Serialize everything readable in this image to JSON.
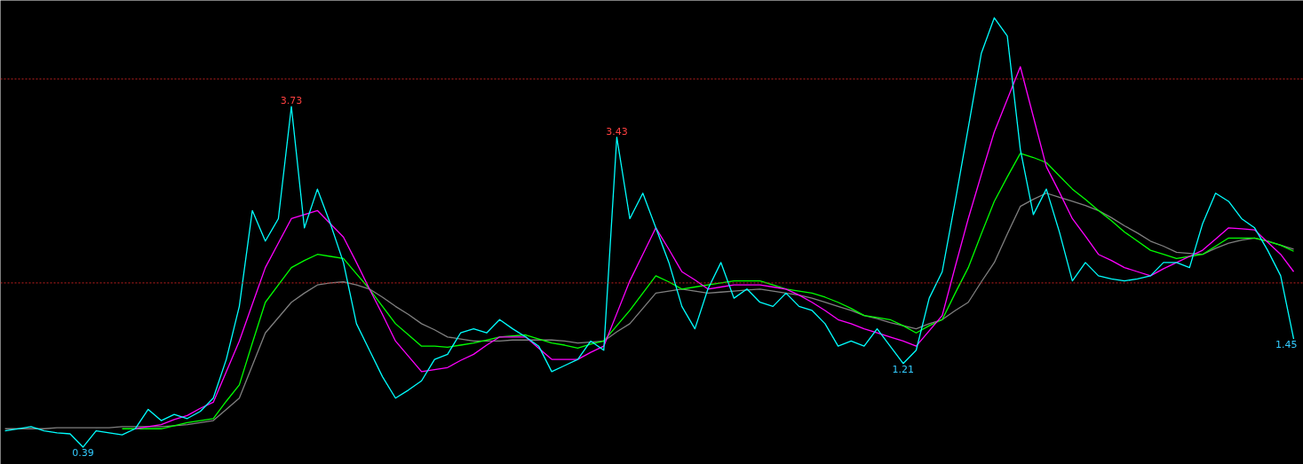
{
  "chart_data": {
    "type": "line",
    "categories": [
      null,
      null,
      null,
      null,
      null,
      null,
      null,
      null,
      null,
      null,
      null,
      null,
      null,
      null,
      null,
      null,
      null,
      null,
      null,
      null,
      null,
      null,
      null,
      null,
      null,
      null,
      null,
      null,
      null,
      null,
      null,
      null,
      null,
      null,
      null,
      null,
      null,
      null,
      null,
      null,
      null,
      null,
      null,
      null,
      null,
      null,
      null,
      null,
      null,
      null,
      null,
      null,
      null,
      null,
      null,
      null,
      null,
      null,
      null,
      null,
      null,
      null,
      null,
      null,
      null,
      null,
      null,
      null,
      null,
      null,
      null,
      null,
      null,
      null,
      null,
      null,
      null,
      null,
      null,
      null,
      null,
      null,
      null,
      null,
      null,
      null,
      null,
      null,
      null,
      null,
      null,
      null,
      null,
      null,
      null,
      null,
      null,
      null,
      null,
      null
    ],
    "series": [
      {
        "color": "#808080",
        "values": [
          0.57,
          0.57,
          0.57,
          0.57,
          0.58,
          0.58,
          0.58,
          0.58,
          0.58,
          0.59,
          0.59,
          0.59,
          0.59,
          0.6,
          0.61,
          0.63,
          0.65,
          0.76,
          0.87,
          1.19,
          1.51,
          1.66,
          1.81,
          1.9,
          1.98,
          2.0,
          2.01,
          1.98,
          1.94,
          1.86,
          1.77,
          1.69,
          1.6,
          1.54,
          1.47,
          1.45,
          1.43,
          1.43,
          1.43,
          1.44,
          1.44,
          1.44,
          1.44,
          1.43,
          1.41,
          1.42,
          1.43,
          1.52,
          1.6,
          1.75,
          1.9,
          1.92,
          1.94,
          1.92,
          1.9,
          1.91,
          1.92,
          1.93,
          1.94,
          1.92,
          1.9,
          1.88,
          1.85,
          1.81,
          1.77,
          1.73,
          1.68,
          1.65,
          1.61,
          1.58,
          1.55,
          1.6,
          1.64,
          1.73,
          1.81,
          2.01,
          2.2,
          2.48,
          2.75,
          2.82,
          2.88,
          2.84,
          2.8,
          2.76,
          2.71,
          2.64,
          2.56,
          2.49,
          2.41,
          2.36,
          2.3,
          2.29,
          2.28,
          2.34,
          2.39,
          2.42,
          2.44,
          2.41,
          2.37,
          2.33
        ]
      },
      {
        "color": "#00ff00",
        "values": [
          null,
          null,
          null,
          null,
          null,
          null,
          null,
          null,
          null,
          0.57,
          0.57,
          0.57,
          0.57,
          0.6,
          0.63,
          0.65,
          0.67,
          0.84,
          1.0,
          1.41,
          1.81,
          1.98,
          2.15,
          2.22,
          2.28,
          2.26,
          2.24,
          2.09,
          1.94,
          1.77,
          1.6,
          1.49,
          1.38,
          1.38,
          1.37,
          1.39,
          1.41,
          1.44,
          1.47,
          1.48,
          1.49,
          1.45,
          1.41,
          1.39,
          1.36,
          1.4,
          1.43,
          1.58,
          1.73,
          1.9,
          2.07,
          2.01,
          1.94,
          1.96,
          1.98,
          2.0,
          2.02,
          2.02,
          2.02,
          1.98,
          1.94,
          1.92,
          1.9,
          1.86,
          1.81,
          1.75,
          1.68,
          1.66,
          1.64,
          1.58,
          1.51,
          1.58,
          1.64,
          1.9,
          2.15,
          2.48,
          2.8,
          3.04,
          3.27,
          3.23,
          3.18,
          3.05,
          2.92,
          2.82,
          2.71,
          2.61,
          2.5,
          2.41,
          2.32,
          2.28,
          2.24,
          2.26,
          2.28,
          2.36,
          2.44,
          2.44,
          2.44,
          2.41,
          2.37,
          2.31
        ]
      },
      {
        "color": "#ff00ff",
        "values": [
          null,
          null,
          null,
          null,
          null,
          null,
          null,
          null,
          null,
          null,
          0.57,
          0.59,
          0.61,
          0.66,
          0.7,
          0.77,
          0.83,
          1.13,
          1.43,
          1.79,
          2.15,
          2.39,
          2.63,
          2.67,
          2.71,
          2.58,
          2.45,
          2.2,
          1.94,
          1.69,
          1.43,
          1.28,
          1.13,
          1.15,
          1.17,
          1.24,
          1.3,
          1.39,
          1.47,
          1.47,
          1.47,
          1.36,
          1.25,
          1.25,
          1.25,
          1.32,
          1.38,
          1.7,
          2.02,
          2.28,
          2.54,
          2.33,
          2.11,
          2.03,
          1.94,
          1.96,
          1.98,
          1.98,
          1.98,
          1.96,
          1.94,
          1.88,
          1.81,
          1.73,
          1.64,
          1.6,
          1.55,
          1.51,
          1.47,
          1.43,
          1.38,
          1.53,
          1.68,
          2.16,
          2.63,
          3.06,
          3.48,
          3.8,
          4.12,
          3.63,
          3.14,
          2.89,
          2.63,
          2.46,
          2.28,
          2.22,
          2.15,
          2.11,
          2.07,
          2.14,
          2.2,
          2.26,
          2.32,
          2.43,
          2.54,
          2.53,
          2.52,
          2.4,
          2.28,
          2.11
        ]
      },
      {
        "color": "#00ffff",
        "values": [
          0.55,
          0.57,
          0.59,
          0.55,
          0.53,
          0.52,
          0.39,
          0.55,
          0.53,
          0.51,
          0.57,
          0.76,
          0.65,
          0.71,
          0.67,
          0.74,
          0.87,
          1.25,
          1.77,
          2.71,
          2.41,
          2.63,
          3.73,
          2.54,
          2.92,
          2.58,
          2.2,
          1.6,
          1.34,
          1.08,
          0.87,
          0.95,
          1.04,
          1.25,
          1.3,
          1.51,
          1.55,
          1.51,
          1.64,
          1.55,
          1.47,
          1.38,
          1.13,
          1.19,
          1.25,
          1.43,
          1.34,
          3.43,
          2.63,
          2.88,
          2.54,
          2.2,
          1.77,
          1.55,
          1.94,
          2.2,
          1.85,
          1.94,
          1.81,
          1.77,
          1.9,
          1.77,
          1.73,
          1.6,
          1.38,
          1.43,
          1.38,
          1.55,
          1.38,
          1.21,
          1.34,
          1.85,
          2.11,
          2.8,
          3.52,
          4.25,
          4.6,
          4.42,
          3.31,
          2.67,
          2.92,
          2.5,
          2.02,
          2.2,
          2.07,
          2.04,
          2.02,
          2.04,
          2.07,
          2.2,
          2.2,
          2.15,
          2.58,
          2.88,
          2.8,
          2.63,
          2.54,
          2.32,
          2.07,
          1.45
        ],
        "value_labels": [
          null,
          null,
          null,
          null,
          null,
          null,
          "0.39",
          null,
          null,
          null,
          null,
          null,
          null,
          null,
          null,
          null,
          null,
          null,
          null,
          null,
          null,
          null,
          "3.73",
          null,
          null,
          null,
          null,
          null,
          null,
          null,
          null,
          null,
          null,
          null,
          null,
          null,
          null,
          null,
          null,
          null,
          null,
          null,
          null,
          null,
          null,
          null,
          null,
          "3.43",
          null,
          null,
          null,
          null,
          null,
          null,
          null,
          null,
          null,
          null,
          null,
          null,
          null,
          null,
          null,
          null,
          null,
          null,
          null,
          null,
          null,
          "1.21",
          null,
          null,
          null,
          null,
          null,
          null,
          null,
          null,
          null,
          null,
          null,
          null,
          null,
          null,
          null,
          null,
          null,
          null,
          null,
          null,
          null,
          null,
          null,
          null,
          null,
          null,
          null,
          null,
          null,
          "1.45"
        ]
      }
    ],
    "ylim": [
      0.22,
      4.77
    ],
    "ref_lines": [
      {
        "axis": "y",
        "value": 2,
        "color": "#c02020",
        "line_style": "dotted"
      },
      {
        "axis": "y",
        "value": 4,
        "color": "#c02020",
        "line_style": "dotted"
      }
    ],
    "tick_labels": false,
    "marker": "none",
    "line_style": "solid"
  }
}
